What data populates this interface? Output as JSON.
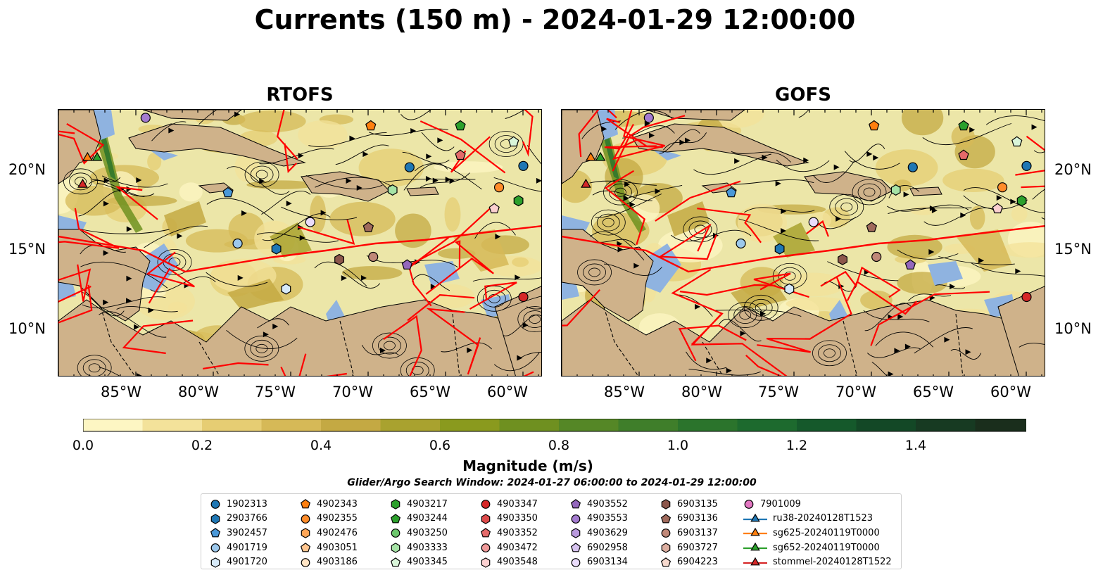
{
  "title": "Currents (150 m) - 2024-01-29 12:00:00",
  "panels": [
    {
      "title": "RTOFS"
    },
    {
      "title": "GOFS"
    }
  ],
  "axes": {
    "lat_labels": [
      "20°N",
      "15°N",
      "10°N"
    ],
    "lon_labels": [
      "85°W",
      "80°W",
      "75°W",
      "70°W",
      "65°W",
      "60°W"
    ]
  },
  "colorbar": {
    "label": "Magnitude (m/s)",
    "ticks": [
      "0.0",
      "0.2",
      "0.4",
      "0.6",
      "0.8",
      "1.0",
      "1.2",
      "1.4"
    ],
    "colors": [
      "#fdf6c3",
      "#f3e29a",
      "#e6cd73",
      "#d6b957",
      "#c4a943",
      "#a9a22f",
      "#8a9a1e",
      "#6f9020",
      "#558726",
      "#3f7e2a",
      "#2b742c",
      "#1d6a2e",
      "#15592b",
      "#134826",
      "#173a22",
      "#1a2e1c"
    ]
  },
  "search_window": "Glider/Argo Search Window: 2024-01-27 06:00:00 to 2024-01-29 12:00:00",
  "map_colors": {
    "ocean": "#ece6a8",
    "land": "#cfb28a",
    "shallow": "#8fb3e0",
    "eez": "#ff0000"
  },
  "legend": [
    {
      "label": "1902313",
      "shape": "circle",
      "color": "#1f77b4"
    },
    {
      "label": "2903766",
      "shape": "hexagon",
      "color": "#1f77b4"
    },
    {
      "label": "3902457",
      "shape": "pentagon",
      "color": "#4a98d8"
    },
    {
      "label": "4901719",
      "shape": "circle",
      "color": "#9cc8ec"
    },
    {
      "label": "4901720",
      "shape": "hexagon",
      "color": "#d6e9f8"
    },
    {
      "label": "4902343",
      "shape": "pentagon",
      "color": "#ff7f0e"
    },
    {
      "label": "4902355",
      "shape": "circle",
      "color": "#ff8c2a"
    },
    {
      "label": "4902476",
      "shape": "hexagon",
      "color": "#ffa657"
    },
    {
      "label": "4903051",
      "shape": "pentagon",
      "color": "#ffc58f"
    },
    {
      "label": "4903186",
      "shape": "circle",
      "color": "#ffe4c4"
    },
    {
      "label": "4903217",
      "shape": "hexagon",
      "color": "#2ca02c"
    },
    {
      "label": "4903244",
      "shape": "pentagon",
      "color": "#2ca02c"
    },
    {
      "label": "4903250",
      "shape": "circle",
      "color": "#6cc66c"
    },
    {
      "label": "4903333",
      "shape": "hexagon",
      "color": "#a6e3a6"
    },
    {
      "label": "4903345",
      "shape": "pentagon",
      "color": "#d9f5d9"
    },
    {
      "label": "4903347",
      "shape": "circle",
      "color": "#d62728"
    },
    {
      "label": "4903350",
      "shape": "hexagon",
      "color": "#dd4a4a"
    },
    {
      "label": "4903352",
      "shape": "pentagon",
      "color": "#e46a6a"
    },
    {
      "label": "4903472",
      "shape": "circle",
      "color": "#f09a9a"
    },
    {
      "label": "4903548",
      "shape": "hexagon",
      "color": "#fbd0d0"
    },
    {
      "label": "4903552",
      "shape": "pentagon",
      "color": "#9467bd"
    },
    {
      "label": "4903553",
      "shape": "circle",
      "color": "#a47bd0"
    },
    {
      "label": "4903629",
      "shape": "hexagon",
      "color": "#b899dc"
    },
    {
      "label": "6902958",
      "shape": "pentagon",
      "color": "#d6c3ef"
    },
    {
      "label": "6903134",
      "shape": "circle",
      "color": "#eadcfb"
    },
    {
      "label": "6903135",
      "shape": "hexagon",
      "color": "#8c564b"
    },
    {
      "label": "6903136",
      "shape": "pentagon",
      "color": "#a06a5c"
    },
    {
      "label": "6903137",
      "shape": "circle",
      "color": "#c08878"
    },
    {
      "label": "6903727",
      "shape": "hexagon",
      "color": "#dcaea0"
    },
    {
      "label": "6904223",
      "shape": "pentagon",
      "color": "#f6d9ce"
    },
    {
      "label": "7901009",
      "shape": "circle",
      "color": "#e377c2"
    },
    {
      "label": "ru38-20240128T1523",
      "shape": "triangle-line",
      "color": "#1f77b4"
    },
    {
      "label": "sg625-20240119T0000",
      "shape": "triangle-line",
      "color": "#ff7f0e"
    },
    {
      "label": "sg652-20240119T0000",
      "shape": "triangle-line",
      "color": "#2ca02c"
    },
    {
      "label": "stommel-20240128T1522",
      "shape": "triangle-line",
      "color": "#d62728"
    }
  ]
}
